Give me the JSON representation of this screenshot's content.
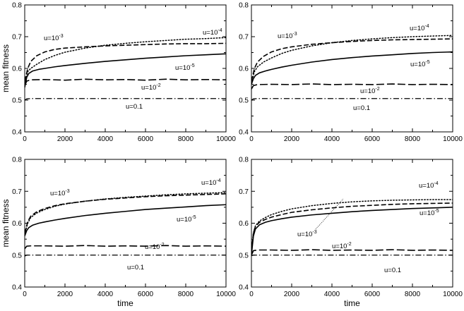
{
  "chart_data": [
    {
      "type": "line",
      "panel": "top-left",
      "xlabel": "",
      "ylabel": "mean fitness",
      "xlim": [
        0,
        10000
      ],
      "ylim": [
        0.4,
        0.8
      ],
      "xticks": [
        0,
        2000,
        4000,
        6000,
        8000,
        10000
      ],
      "yticks": [
        0.4,
        0.5,
        0.6,
        0.7,
        0.8
      ],
      "xtick_labels": [
        "0",
        "2000",
        "4000",
        "6000",
        "8000",
        "10000"
      ],
      "ytick_labels": [
        "0.4",
        "0.5",
        "0.6",
        "0.7",
        "0.8"
      ],
      "grid": false,
      "series": [
        {
          "label": "u=10",
          "exp": "-4",
          "dash": "dotted",
          "x": [
            0,
            150,
            300,
            600,
            1000,
            1500,
            2000,
            3000,
            4000,
            5000,
            6000,
            7000,
            8000,
            9000,
            10000
          ],
          "y": [
            0.555,
            0.59,
            0.6,
            0.613,
            0.628,
            0.641,
            0.651,
            0.664,
            0.673,
            0.679,
            0.684,
            0.688,
            0.692,
            0.694,
            0.697
          ]
        },
        {
          "label": "u=10",
          "exp": "-3",
          "dash": "dashed",
          "x": [
            0,
            150,
            300,
            600,
            1000,
            1500,
            2000,
            3000,
            4000,
            5000,
            6000,
            7000,
            8000,
            9000,
            10000
          ],
          "y": [
            0.56,
            0.6,
            0.622,
            0.64,
            0.652,
            0.66,
            0.664,
            0.668,
            0.671,
            0.673,
            0.675,
            0.677,
            0.678,
            0.678,
            0.679
          ]
        },
        {
          "label": "u=10",
          "exp": "-5",
          "dash": "solid",
          "x": [
            0,
            100,
            200,
            400,
            700,
            1000,
            1500,
            2000,
            3000,
            4000,
            5000,
            6000,
            7000,
            8000,
            9000,
            10000
          ],
          "y": [
            0.54,
            0.572,
            0.584,
            0.592,
            0.597,
            0.6,
            0.605,
            0.609,
            0.616,
            0.622,
            0.627,
            0.632,
            0.636,
            0.64,
            0.643,
            0.646
          ]
        },
        {
          "label": "u=10",
          "exp": "-2",
          "dash": "longdash",
          "x": [
            0,
            100,
            300,
            1000,
            2000,
            3000,
            4000,
            5000,
            6000,
            7000,
            8000,
            9000,
            10000
          ],
          "y": [
            0.545,
            0.56,
            0.564,
            0.565,
            0.563,
            0.566,
            0.564,
            0.565,
            0.563,
            0.566,
            0.564,
            0.565,
            0.564
          ]
        },
        {
          "label": "u=0.1",
          "exp": "",
          "dash": "dashdot",
          "x": [
            0,
            100,
            300,
            1000,
            3000,
            6000,
            10000
          ],
          "y": [
            0.5,
            0.504,
            0.505,
            0.505,
            0.505,
            0.505,
            0.505
          ]
        }
      ]
    },
    {
      "type": "line",
      "panel": "top-right",
      "xlabel": "",
      "ylabel": "",
      "xlim": [
        0,
        10000
      ],
      "ylim": [
        0.4,
        0.8
      ],
      "xticks": [
        0,
        2000,
        4000,
        6000,
        8000,
        10000
      ],
      "yticks": [
        0.4,
        0.5,
        0.6,
        0.7,
        0.8
      ],
      "xtick_labels": [
        "0",
        "2000",
        "4000",
        "6000",
        "8000",
        "10000"
      ],
      "ytick_labels": [
        "0.4",
        "0.5",
        "0.6",
        "0.7",
        "0.8"
      ],
      "grid": false,
      "series": [
        {
          "label": "u=10",
          "exp": "-4",
          "dash": "dotted",
          "x": [
            0,
            150,
            300,
            600,
            1000,
            1500,
            2000,
            3000,
            4000,
            5000,
            6000,
            7000,
            8000,
            9000,
            10000
          ],
          "y": [
            0.555,
            0.59,
            0.605,
            0.62,
            0.633,
            0.647,
            0.657,
            0.671,
            0.681,
            0.688,
            0.693,
            0.697,
            0.7,
            0.702,
            0.704
          ]
        },
        {
          "label": "u=10",
          "exp": "-3",
          "dash": "dashed",
          "x": [
            0,
            150,
            300,
            600,
            1000,
            1500,
            2000,
            3000,
            4000,
            5000,
            6000,
            7000,
            8000,
            9000,
            10000
          ],
          "y": [
            0.56,
            0.6,
            0.62,
            0.638,
            0.652,
            0.662,
            0.668,
            0.676,
            0.681,
            0.685,
            0.688,
            0.69,
            0.691,
            0.692,
            0.693
          ]
        },
        {
          "label": "u=10",
          "exp": "-5",
          "dash": "solid",
          "x": [
            0,
            100,
            200,
            400,
            700,
            1000,
            1500,
            2000,
            3000,
            4000,
            5000,
            6000,
            7000,
            8000,
            9000,
            10000
          ],
          "y": [
            0.55,
            0.568,
            0.578,
            0.586,
            0.592,
            0.597,
            0.604,
            0.61,
            0.62,
            0.628,
            0.634,
            0.639,
            0.643,
            0.647,
            0.65,
            0.652
          ]
        },
        {
          "label": "u=10",
          "exp": "-2",
          "dash": "longdash",
          "x": [
            0,
            100,
            300,
            1000,
            2000,
            3000,
            4000,
            5000,
            6000,
            7000,
            8000,
            9000,
            10000
          ],
          "y": [
            0.535,
            0.546,
            0.549,
            0.55,
            0.549,
            0.551,
            0.549,
            0.55,
            0.549,
            0.551,
            0.549,
            0.55,
            0.549
          ]
        },
        {
          "label": "u=0.1",
          "exp": "",
          "dash": "dashdot",
          "x": [
            0,
            100,
            300,
            1000,
            3000,
            6000,
            10000
          ],
          "y": [
            0.5,
            0.504,
            0.505,
            0.505,
            0.505,
            0.505,
            0.505
          ]
        }
      ]
    },
    {
      "type": "line",
      "panel": "bottom-left",
      "xlabel": "time",
      "ylabel": "mean fitness",
      "xlim": [
        0,
        10000
      ],
      "ylim": [
        0.4,
        0.8
      ],
      "xticks": [
        0,
        2000,
        4000,
        6000,
        8000,
        10000
      ],
      "yticks": [
        0.4,
        0.5,
        0.6,
        0.7,
        0.8
      ],
      "xtick_labels": [
        "0",
        "2000",
        "4000",
        "6000",
        "8000",
        "10000"
      ],
      "ytick_labels": [
        "0.4",
        "0.5",
        "0.6",
        "0.7",
        "0.8"
      ],
      "grid": false,
      "series": [
        {
          "label": "u=10",
          "exp": "-4",
          "dash": "dotted",
          "x": [
            0,
            150,
            300,
            600,
            1000,
            1500,
            2000,
            3000,
            4000,
            5000,
            6000,
            7000,
            8000,
            9000,
            10000
          ],
          "y": [
            0.565,
            0.6,
            0.618,
            0.632,
            0.643,
            0.653,
            0.66,
            0.669,
            0.676,
            0.681,
            0.685,
            0.689,
            0.692,
            0.694,
            0.696
          ]
        },
        {
          "label": "u=10",
          "exp": "-3",
          "dash": "dashed",
          "x": [
            0,
            150,
            300,
            600,
            1000,
            1500,
            2000,
            3000,
            4000,
            5000,
            6000,
            7000,
            8000,
            9000,
            10000
          ],
          "y": [
            0.568,
            0.605,
            0.622,
            0.636,
            0.646,
            0.655,
            0.661,
            0.669,
            0.675,
            0.679,
            0.683,
            0.686,
            0.688,
            0.69,
            0.692
          ]
        },
        {
          "label": "u=10",
          "exp": "-5",
          "dash": "solid",
          "x": [
            0,
            100,
            200,
            400,
            700,
            1000,
            1500,
            2000,
            3000,
            4000,
            5000,
            6000,
            7000,
            8000,
            9000,
            10000
          ],
          "y": [
            0.56,
            0.577,
            0.586,
            0.594,
            0.6,
            0.604,
            0.61,
            0.615,
            0.624,
            0.631,
            0.637,
            0.643,
            0.647,
            0.651,
            0.655,
            0.658
          ]
        },
        {
          "label": "u=10",
          "exp": "-2",
          "dash": "longdash",
          "x": [
            0,
            100,
            300,
            1000,
            2000,
            3000,
            4000,
            5000,
            6000,
            7000,
            8000,
            9000,
            10000
          ],
          "y": [
            0.52,
            0.528,
            0.529,
            0.529,
            0.528,
            0.53,
            0.528,
            0.529,
            0.528,
            0.53,
            0.528,
            0.529,
            0.528
          ]
        },
        {
          "label": "u=0.1",
          "exp": "",
          "dash": "dashdot",
          "x": [
            0,
            100,
            300,
            1000,
            3000,
            6000,
            10000
          ],
          "y": [
            0.497,
            0.5,
            0.5,
            0.5,
            0.5,
            0.5,
            0.5
          ]
        }
      ]
    },
    {
      "type": "line",
      "panel": "bottom-right",
      "xlabel": "time",
      "ylabel": "",
      "xlim": [
        0,
        10000
      ],
      "ylim": [
        0.4,
        0.8
      ],
      "xticks": [
        0,
        2000,
        4000,
        6000,
        8000,
        10000
      ],
      "yticks": [
        0.4,
        0.5,
        0.6,
        0.7,
        0.8
      ],
      "xtick_labels": [
        "0",
        "2000",
        "4000",
        "6000",
        "8000",
        "10000"
      ],
      "ytick_labels": [
        "0.4",
        "0.5",
        "0.6",
        "0.7",
        "0.8"
      ],
      "grid": false,
      "series": [
        {
          "label": "u=10",
          "exp": "-4",
          "dash": "dotted",
          "x": [
            0,
            100,
            200,
            400,
            700,
            1000,
            1500,
            2000,
            3000,
            4000,
            5000,
            6000,
            7000,
            8000,
            9000,
            10000
          ],
          "y": [
            0.51,
            0.57,
            0.592,
            0.607,
            0.618,
            0.627,
            0.637,
            0.645,
            0.655,
            0.662,
            0.667,
            0.67,
            0.672,
            0.673,
            0.674,
            0.674
          ]
        },
        {
          "label": "u=10",
          "exp": "-3",
          "dash": "dashed",
          "x": [
            0,
            100,
            200,
            400,
            700,
            1000,
            1500,
            2000,
            3000,
            4000,
            5000,
            6000,
            7000,
            8000,
            9000,
            10000
          ],
          "y": [
            0.51,
            0.57,
            0.59,
            0.603,
            0.612,
            0.619,
            0.627,
            0.634,
            0.642,
            0.648,
            0.653,
            0.656,
            0.659,
            0.661,
            0.662,
            0.663
          ]
        },
        {
          "label": "u=10",
          "exp": "-5",
          "dash": "solid",
          "x": [
            0,
            100,
            200,
            400,
            700,
            1000,
            1500,
            2000,
            3000,
            4000,
            5000,
            6000,
            7000,
            8000,
            9000,
            10000
          ],
          "y": [
            0.5,
            0.56,
            0.582,
            0.595,
            0.603,
            0.608,
            0.614,
            0.619,
            0.626,
            0.631,
            0.636,
            0.64,
            0.643,
            0.646,
            0.648,
            0.65
          ]
        },
        {
          "label": "u=10",
          "exp": "-2",
          "dash": "longdash",
          "x": [
            0,
            100,
            300,
            1000,
            2000,
            3000,
            4000,
            5000,
            6000,
            7000,
            8000,
            9000,
            10000
          ],
          "y": [
            0.5,
            0.514,
            0.516,
            0.516,
            0.515,
            0.517,
            0.515,
            0.516,
            0.515,
            0.517,
            0.515,
            0.516,
            0.515
          ]
        },
        {
          "label": "u=0.1",
          "exp": "",
          "dash": "dashdot",
          "x": [
            0,
            100,
            300,
            1000,
            3000,
            6000,
            10000
          ],
          "y": [
            0.498,
            0.5,
            0.5,
            0.5,
            0.5,
            0.5,
            0.5
          ]
        }
      ]
    }
  ]
}
